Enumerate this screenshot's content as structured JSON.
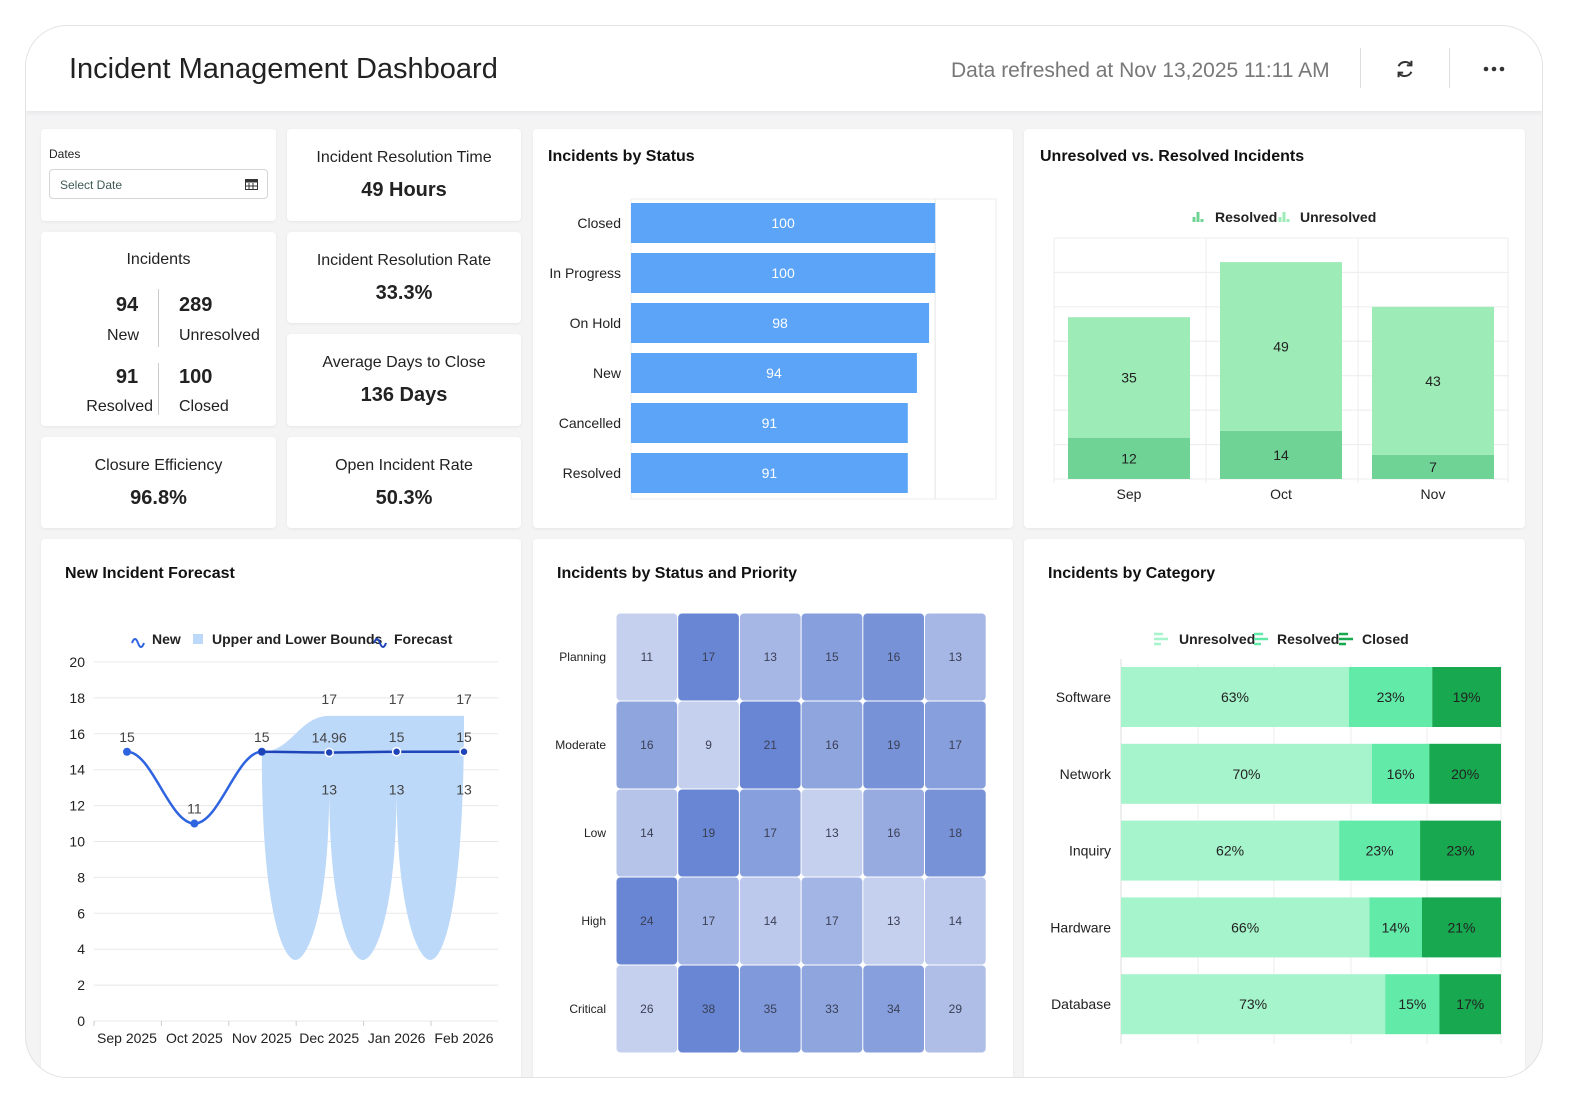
{
  "header": {
    "title": "Incident Management Dashboard",
    "refreshed": "Data refreshed at Nov 13,2025 11:11 AM",
    "refresh_icon": "refresh-icon",
    "more_icon": "more-horizontal-icon"
  },
  "filters": {
    "label": "Dates",
    "placeholder": "Select Date",
    "icon": "calendar-icon"
  },
  "kpis": {
    "resolution_time": {
      "label": "Incident Resolution Time",
      "value": "49 Hours"
    },
    "resolution_rate": {
      "label": "Incident Resolution Rate",
      "value": "33.3%"
    },
    "avg_days": {
      "label": "Average Days to Close",
      "value": "136 Days"
    },
    "closure": {
      "label": "Closure Efficiency",
      "value": "96.8%"
    },
    "open_rate": {
      "label": "Open Incident Rate",
      "value": "50.3%"
    },
    "incidents": {
      "label": "Incidents",
      "new": {
        "value": "94",
        "label": "New"
      },
      "unresolved": {
        "value": "289",
        "label": "Unresolved"
      },
      "resolved": {
        "value": "91",
        "label": "Resolved"
      },
      "closed": {
        "value": "100",
        "label": "Closed"
      }
    }
  },
  "chart_data": [
    {
      "id": "status",
      "type": "bar",
      "orientation": "horizontal",
      "title": "Incidents by Status",
      "categories": [
        "Closed",
        "In Progress",
        "On Hold",
        "New",
        "Cancelled",
        "Resolved"
      ],
      "values": [
        100,
        100,
        98,
        94,
        91,
        91
      ],
      "xlim": [
        0,
        120
      ],
      "color": "#5ba4f8"
    },
    {
      "id": "unres",
      "type": "bar",
      "stacked": true,
      "title": "Unresolved vs. Resolved Incidents",
      "categories": [
        "Sep",
        "Oct",
        "Nov"
      ],
      "series": [
        {
          "name": "Resolved",
          "values": [
            12,
            14,
            7
          ],
          "color": "#6fd396"
        },
        {
          "name": "Unresolved",
          "values": [
            35,
            49,
            43
          ],
          "color": "#9debb6"
        }
      ],
      "ylim": [
        0,
        70
      ],
      "legend": "top"
    },
    {
      "id": "forecast",
      "type": "line",
      "title": "New Incident Forecast",
      "categories": [
        "Sep 2025",
        "Oct 2025",
        "Nov 2025",
        "Dec 2025",
        "Jan 2026",
        "Feb 2026"
      ],
      "series": [
        {
          "name": "New",
          "values": [
            15,
            11,
            15,
            null,
            null,
            null
          ],
          "color": "#2f64e0"
        },
        {
          "name": "Upper and Lower Bounds",
          "upper": [
            null,
            null,
            15,
            17,
            17,
            17
          ],
          "lower": [
            null,
            null,
            15,
            13,
            13,
            13
          ],
          "color": "#bcd9fa"
        },
        {
          "name": "Forecast",
          "values": [
            null,
            null,
            15,
            14.96,
            15,
            15
          ],
          "color": "#1e44b8"
        }
      ],
      "ylim": [
        0,
        20
      ],
      "yticks": [
        0,
        2,
        4,
        6,
        8,
        10,
        12,
        14,
        16,
        18,
        20
      ],
      "legend": "top"
    },
    {
      "id": "heat",
      "type": "heatmap",
      "title": "Incidents by Status and Priority",
      "rows": [
        "Planning",
        "Moderate",
        "Low",
        "High",
        "Critical"
      ],
      "values": [
        [
          11,
          17,
          13,
          15,
          16,
          13
        ],
        [
          16,
          9,
          21,
          16,
          19,
          17
        ],
        [
          14,
          19,
          17,
          13,
          16,
          18
        ],
        [
          24,
          17,
          14,
          17,
          13,
          14
        ],
        [
          26,
          38,
          35,
          33,
          34,
          29
        ]
      ],
      "colors": [
        "#c5d0ee",
        "#6886d3"
      ]
    },
    {
      "id": "cat",
      "type": "bar",
      "orientation": "horizontal",
      "stacked": true,
      "title": "Incidents by Category",
      "categories": [
        "Software",
        "Network",
        "Inquiry",
        "Hardware",
        "Database"
      ],
      "series": [
        {
          "name": "Unresolved",
          "values": [
            63,
            70,
            62,
            66,
            73
          ],
          "color": "#a6f4cc"
        },
        {
          "name": "Resolved",
          "values": [
            23,
            16,
            23,
            14,
            15
          ],
          "color": "#62eaa8"
        },
        {
          "name": "Closed",
          "values": [
            19,
            20,
            23,
            21,
            17
          ],
          "color": "#18a84f"
        }
      ],
      "unit": "%",
      "legend": "top"
    }
  ]
}
